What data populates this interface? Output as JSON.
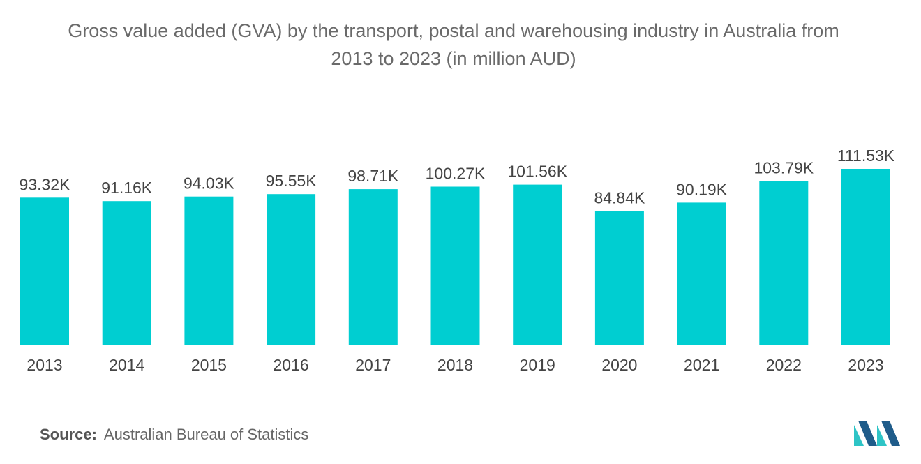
{
  "title_line1": "Gross value added (GVA) by the transport, postal and warehousing industry in Australia from",
  "title_line2": "2013 to 2023 (in million AUD)",
  "source_label": "Source:",
  "source_text": "Australian Bureau of Statistics",
  "colors": {
    "bar": "#00CED1",
    "text": "#444444",
    "logo_dark": "#1f5c8a",
    "logo_light": "#2ec4c6"
  },
  "chart_data": {
    "type": "bar",
    "title": "Gross value added (GVA) by the transport, postal and warehousing industry in Australia from 2013 to 2023 (in million AUD)",
    "categories": [
      "2013",
      "2014",
      "2015",
      "2016",
      "2017",
      "2018",
      "2019",
      "2020",
      "2021",
      "2022",
      "2023"
    ],
    "values": [
      93.32,
      91.16,
      94.03,
      95.55,
      98.71,
      100.27,
      101.56,
      84.84,
      90.19,
      103.79,
      111.53
    ],
    "value_labels": [
      "93.32K",
      "91.16K",
      "94.03K",
      "95.55K",
      "98.71K",
      "100.27K",
      "101.56K",
      "84.84K",
      "90.19K",
      "103.79K",
      "111.53K"
    ],
    "xlabel": "",
    "ylabel": "",
    "ylim": [
      0,
      111.53
    ],
    "grid": false,
    "legend": "none"
  }
}
